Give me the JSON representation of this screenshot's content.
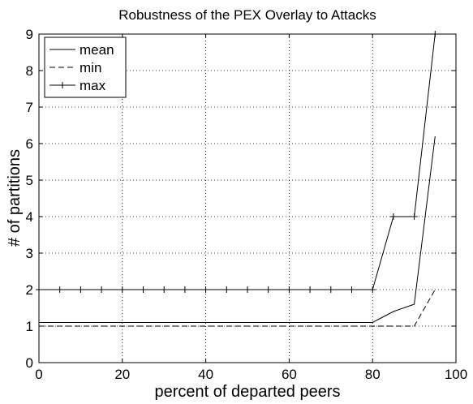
{
  "chart_data": {
    "type": "line",
    "title": "Robustness of the PEX Overlay to Attacks",
    "xlabel": "percent of departed peers",
    "ylabel": "# of partitions",
    "xlim": [
      0,
      100
    ],
    "ylim": [
      0,
      9
    ],
    "xticks": [
      "0",
      "20",
      "40",
      "60",
      "80",
      "100"
    ],
    "yticks": [
      "0",
      "1",
      "2",
      "3",
      "4",
      "5",
      "6",
      "7",
      "8",
      "9"
    ],
    "grid": true,
    "legend_position": "top-left",
    "x": [
      0,
      5,
      10,
      15,
      20,
      25,
      30,
      35,
      40,
      45,
      50,
      55,
      60,
      65,
      70,
      75,
      80,
      85,
      90,
      95
    ],
    "series": [
      {
        "name": "mean",
        "style": "solid",
        "marker": "none",
        "values": [
          1.1,
          1.1,
          1.1,
          1.1,
          1.1,
          1.1,
          1.1,
          1.1,
          1.1,
          1.1,
          1.1,
          1.1,
          1.1,
          1.1,
          1.1,
          1.1,
          1.1,
          1.4,
          1.6,
          6.2
        ]
      },
      {
        "name": "min",
        "style": "dashed",
        "marker": "none",
        "values": [
          1,
          1,
          1,
          1,
          1,
          1,
          1,
          1,
          1,
          1,
          1,
          1,
          1,
          1,
          1,
          1,
          1,
          1,
          1,
          2
        ]
      },
      {
        "name": "max",
        "style": "solid",
        "marker": "plus",
        "values": [
          2,
          2,
          2,
          2,
          2,
          2,
          2,
          2,
          2,
          2,
          2,
          2,
          2,
          2,
          2,
          2,
          2,
          4,
          4,
          9
        ]
      }
    ]
  },
  "colors": {
    "line": "#000000",
    "grid": "#000000",
    "background": "#ffffff"
  }
}
